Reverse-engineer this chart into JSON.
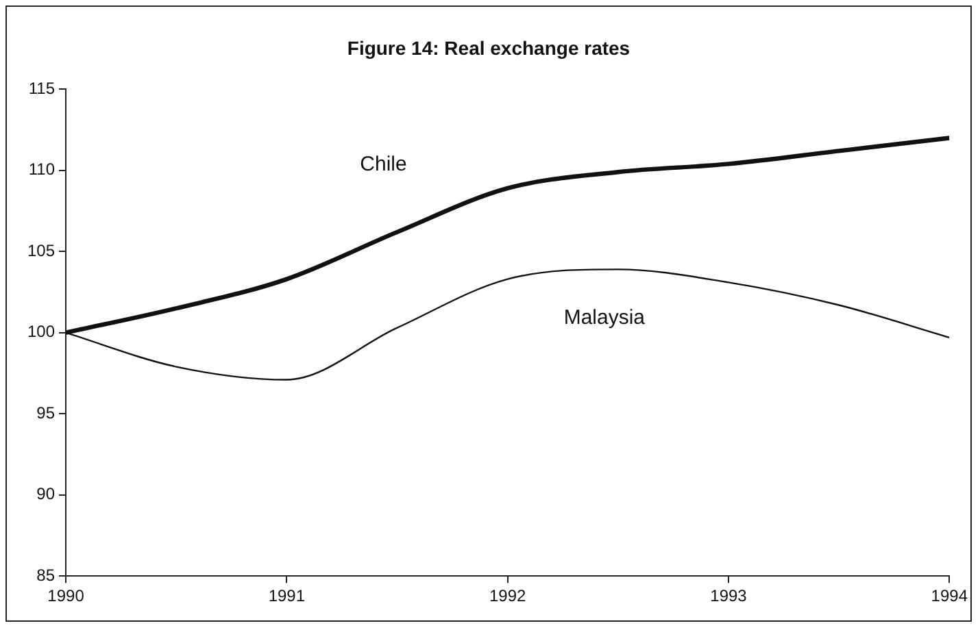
{
  "chart_data": {
    "type": "line",
    "title": "Figure 14: Real exchange rates",
    "x": [
      1990,
      1990.5,
      1991,
      1991.5,
      1992,
      1992.5,
      1993,
      1993.5,
      1994
    ],
    "series": [
      {
        "name": "Chile",
        "color": "#111111",
        "values": [
          100,
          101.5,
          103.3,
          106.2,
          108.9,
          109.9,
          110.4,
          111.2,
          112
        ]
      },
      {
        "name": "Malaysia",
        "color": "#111111",
        "values": [
          100,
          97.9,
          97.1,
          100.3,
          103.3,
          103.9,
          103.1,
          101.7,
          99.7
        ]
      }
    ],
    "xlim": [
      1990,
      1994
    ],
    "xticks": [
      1990,
      1991,
      1992,
      1993,
      1994
    ],
    "ylim": [
      85,
      115
    ],
    "yticks": [
      85,
      90,
      95,
      100,
      105,
      110,
      115
    ],
    "grid": false,
    "legend": false,
    "marker": "none",
    "line_style": "solid"
  }
}
